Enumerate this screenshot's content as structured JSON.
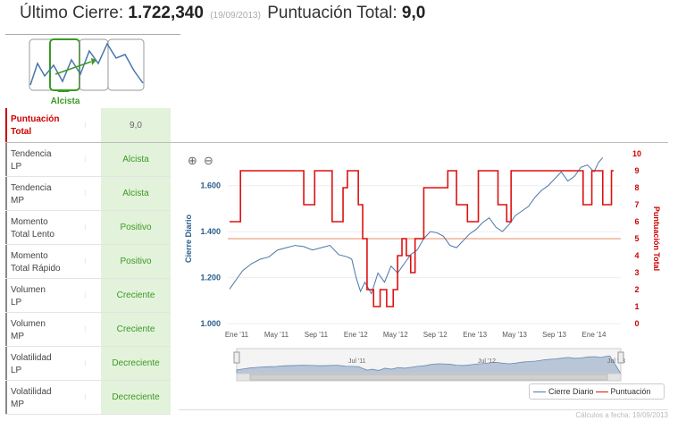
{
  "header": {
    "label_close": "Último Cierre: ",
    "close_value": "1.722,340",
    "date": "(19/09/2013)",
    "label_total": "Puntuación Total: ",
    "total_value": "9,0"
  },
  "trend": {
    "label": "Alcista",
    "selected_index": 1
  },
  "score": {
    "label": "Puntuación\nTotal",
    "value": "9,0",
    "marker": "⁝"
  },
  "indicators": [
    {
      "label": "Tendencia\nLP",
      "value": "Alcista"
    },
    {
      "label": "Tendencia\nMP",
      "value": "Alcista"
    },
    {
      "label": "Momento\nTotal Lento",
      "value": "Positivo"
    },
    {
      "label": "Momento\nTotal Rápido",
      "value": "Positivo"
    },
    {
      "label": "Volumen\nLP",
      "value": "Creciente"
    },
    {
      "label": "Volumen\nMP",
      "value": "Creciente"
    },
    {
      "label": "Volatilidad\nLP",
      "value": "Decreciente"
    },
    {
      "label": "Volatilidad\nMP",
      "value": "Decreciente"
    }
  ],
  "chart_data": {
    "type": "line",
    "x": [
      "Ene '11",
      "May '11",
      "Sep '11",
      "Ene '12",
      "May '12",
      "Sep '12",
      "Ene '13",
      "May '13",
      "Sep '13",
      "Ene '14"
    ],
    "yleft_label": "Cierre Diario",
    "yleft_ticks": [
      "1.000",
      "1.200",
      "1.400",
      "1.600"
    ],
    "yleft_range": [
      1000,
      1700
    ],
    "yright_label": "Puntuación Total",
    "yright_ticks": [
      "0",
      "1",
      "2",
      "3",
      "4",
      "5",
      "6",
      "7",
      "8",
      "9",
      "10"
    ],
    "yright_range": [
      0,
      10
    ],
    "reference_line": 5,
    "series": [
      {
        "name": "Cierre Diario",
        "color": "#4a76a8",
        "points": [
          [
            0,
            1150
          ],
          [
            0.15,
            1190
          ],
          [
            0.3,
            1230
          ],
          [
            0.5,
            1260
          ],
          [
            0.7,
            1280
          ],
          [
            0.9,
            1290
          ],
          [
            1.1,
            1320
          ],
          [
            1.3,
            1330
          ],
          [
            1.5,
            1340
          ],
          [
            1.7,
            1335
          ],
          [
            1.9,
            1320
          ],
          [
            2.1,
            1330
          ],
          [
            2.3,
            1340
          ],
          [
            2.5,
            1300
          ],
          [
            2.7,
            1290
          ],
          [
            2.8,
            1280
          ],
          [
            2.9,
            1200
          ],
          [
            3.0,
            1140
          ],
          [
            3.1,
            1180
          ],
          [
            3.25,
            1130
          ],
          [
            3.4,
            1220
          ],
          [
            3.55,
            1180
          ],
          [
            3.7,
            1250
          ],
          [
            3.85,
            1220
          ],
          [
            4.0,
            1260
          ],
          [
            4.15,
            1300
          ],
          [
            4.3,
            1320
          ],
          [
            4.45,
            1370
          ],
          [
            4.6,
            1400
          ],
          [
            4.75,
            1395
          ],
          [
            4.9,
            1380
          ],
          [
            5.05,
            1340
          ],
          [
            5.2,
            1330
          ],
          [
            5.35,
            1360
          ],
          [
            5.5,
            1390
          ],
          [
            5.65,
            1410
          ],
          [
            5.8,
            1440
          ],
          [
            5.95,
            1460
          ],
          [
            6.1,
            1420
          ],
          [
            6.25,
            1400
          ],
          [
            6.4,
            1430
          ],
          [
            6.55,
            1470
          ],
          [
            6.7,
            1490
          ],
          [
            6.85,
            1510
          ],
          [
            7.0,
            1550
          ],
          [
            7.15,
            1580
          ],
          [
            7.3,
            1600
          ],
          [
            7.45,
            1630
          ],
          [
            7.6,
            1660
          ],
          [
            7.75,
            1620
          ],
          [
            7.9,
            1640
          ],
          [
            8.05,
            1680
          ],
          [
            8.2,
            1690
          ],
          [
            8.35,
            1660
          ],
          [
            8.45,
            1700
          ],
          [
            8.55,
            1722
          ]
        ]
      },
      {
        "name": "Puntuación",
        "color": "#dd1111",
        "steps": [
          [
            0,
            6
          ],
          [
            0.25,
            6
          ],
          [
            0.25,
            9
          ],
          [
            1.7,
            9
          ],
          [
            1.7,
            7
          ],
          [
            1.95,
            7
          ],
          [
            1.95,
            9
          ],
          [
            2.35,
            9
          ],
          [
            2.35,
            6
          ],
          [
            2.6,
            6
          ],
          [
            2.6,
            8
          ],
          [
            2.7,
            8
          ],
          [
            2.7,
            9
          ],
          [
            2.95,
            9
          ],
          [
            2.95,
            7
          ],
          [
            3.05,
            7
          ],
          [
            3.05,
            5
          ],
          [
            3.15,
            5
          ],
          [
            3.15,
            2
          ],
          [
            3.3,
            2
          ],
          [
            3.3,
            1
          ],
          [
            3.45,
            1
          ],
          [
            3.45,
            2
          ],
          [
            3.6,
            2
          ],
          [
            3.6,
            1
          ],
          [
            3.75,
            1
          ],
          [
            3.75,
            2
          ],
          [
            3.85,
            2
          ],
          [
            3.85,
            4
          ],
          [
            3.95,
            4
          ],
          [
            3.95,
            5
          ],
          [
            4.05,
            5
          ],
          [
            4.05,
            4
          ],
          [
            4.15,
            4
          ],
          [
            4.15,
            3
          ],
          [
            4.25,
            3
          ],
          [
            4.25,
            5
          ],
          [
            4.45,
            5
          ],
          [
            4.45,
            8
          ],
          [
            5.0,
            8
          ],
          [
            5.0,
            9
          ],
          [
            5.2,
            9
          ],
          [
            5.2,
            7
          ],
          [
            5.45,
            7
          ],
          [
            5.45,
            6
          ],
          [
            5.7,
            6
          ],
          [
            5.7,
            9
          ],
          [
            6.15,
            9
          ],
          [
            6.15,
            7
          ],
          [
            6.35,
            7
          ],
          [
            6.35,
            6
          ],
          [
            6.45,
            6
          ],
          [
            6.45,
            9
          ],
          [
            8.1,
            9
          ],
          [
            8.1,
            7
          ],
          [
            8.3,
            7
          ],
          [
            8.3,
            9
          ],
          [
            8.55,
            9
          ],
          [
            8.55,
            7
          ],
          [
            8.75,
            7
          ],
          [
            8.75,
            9
          ],
          [
            8.8,
            9
          ]
        ]
      }
    ]
  },
  "navigator": {
    "labels": [
      "Jul '11",
      "Jul '12",
      "Jul '13"
    ]
  },
  "legend": {
    "series1": "Cierre Diario",
    "series2": "Puntuación"
  },
  "footer": {
    "text": "Cálculos a fecha: 19/09/2013"
  },
  "colors": {
    "accent_green": "#3a9a25",
    "cell_green": "#e3f2da",
    "red": "#cc0000",
    "blue": "#4a76a8"
  }
}
